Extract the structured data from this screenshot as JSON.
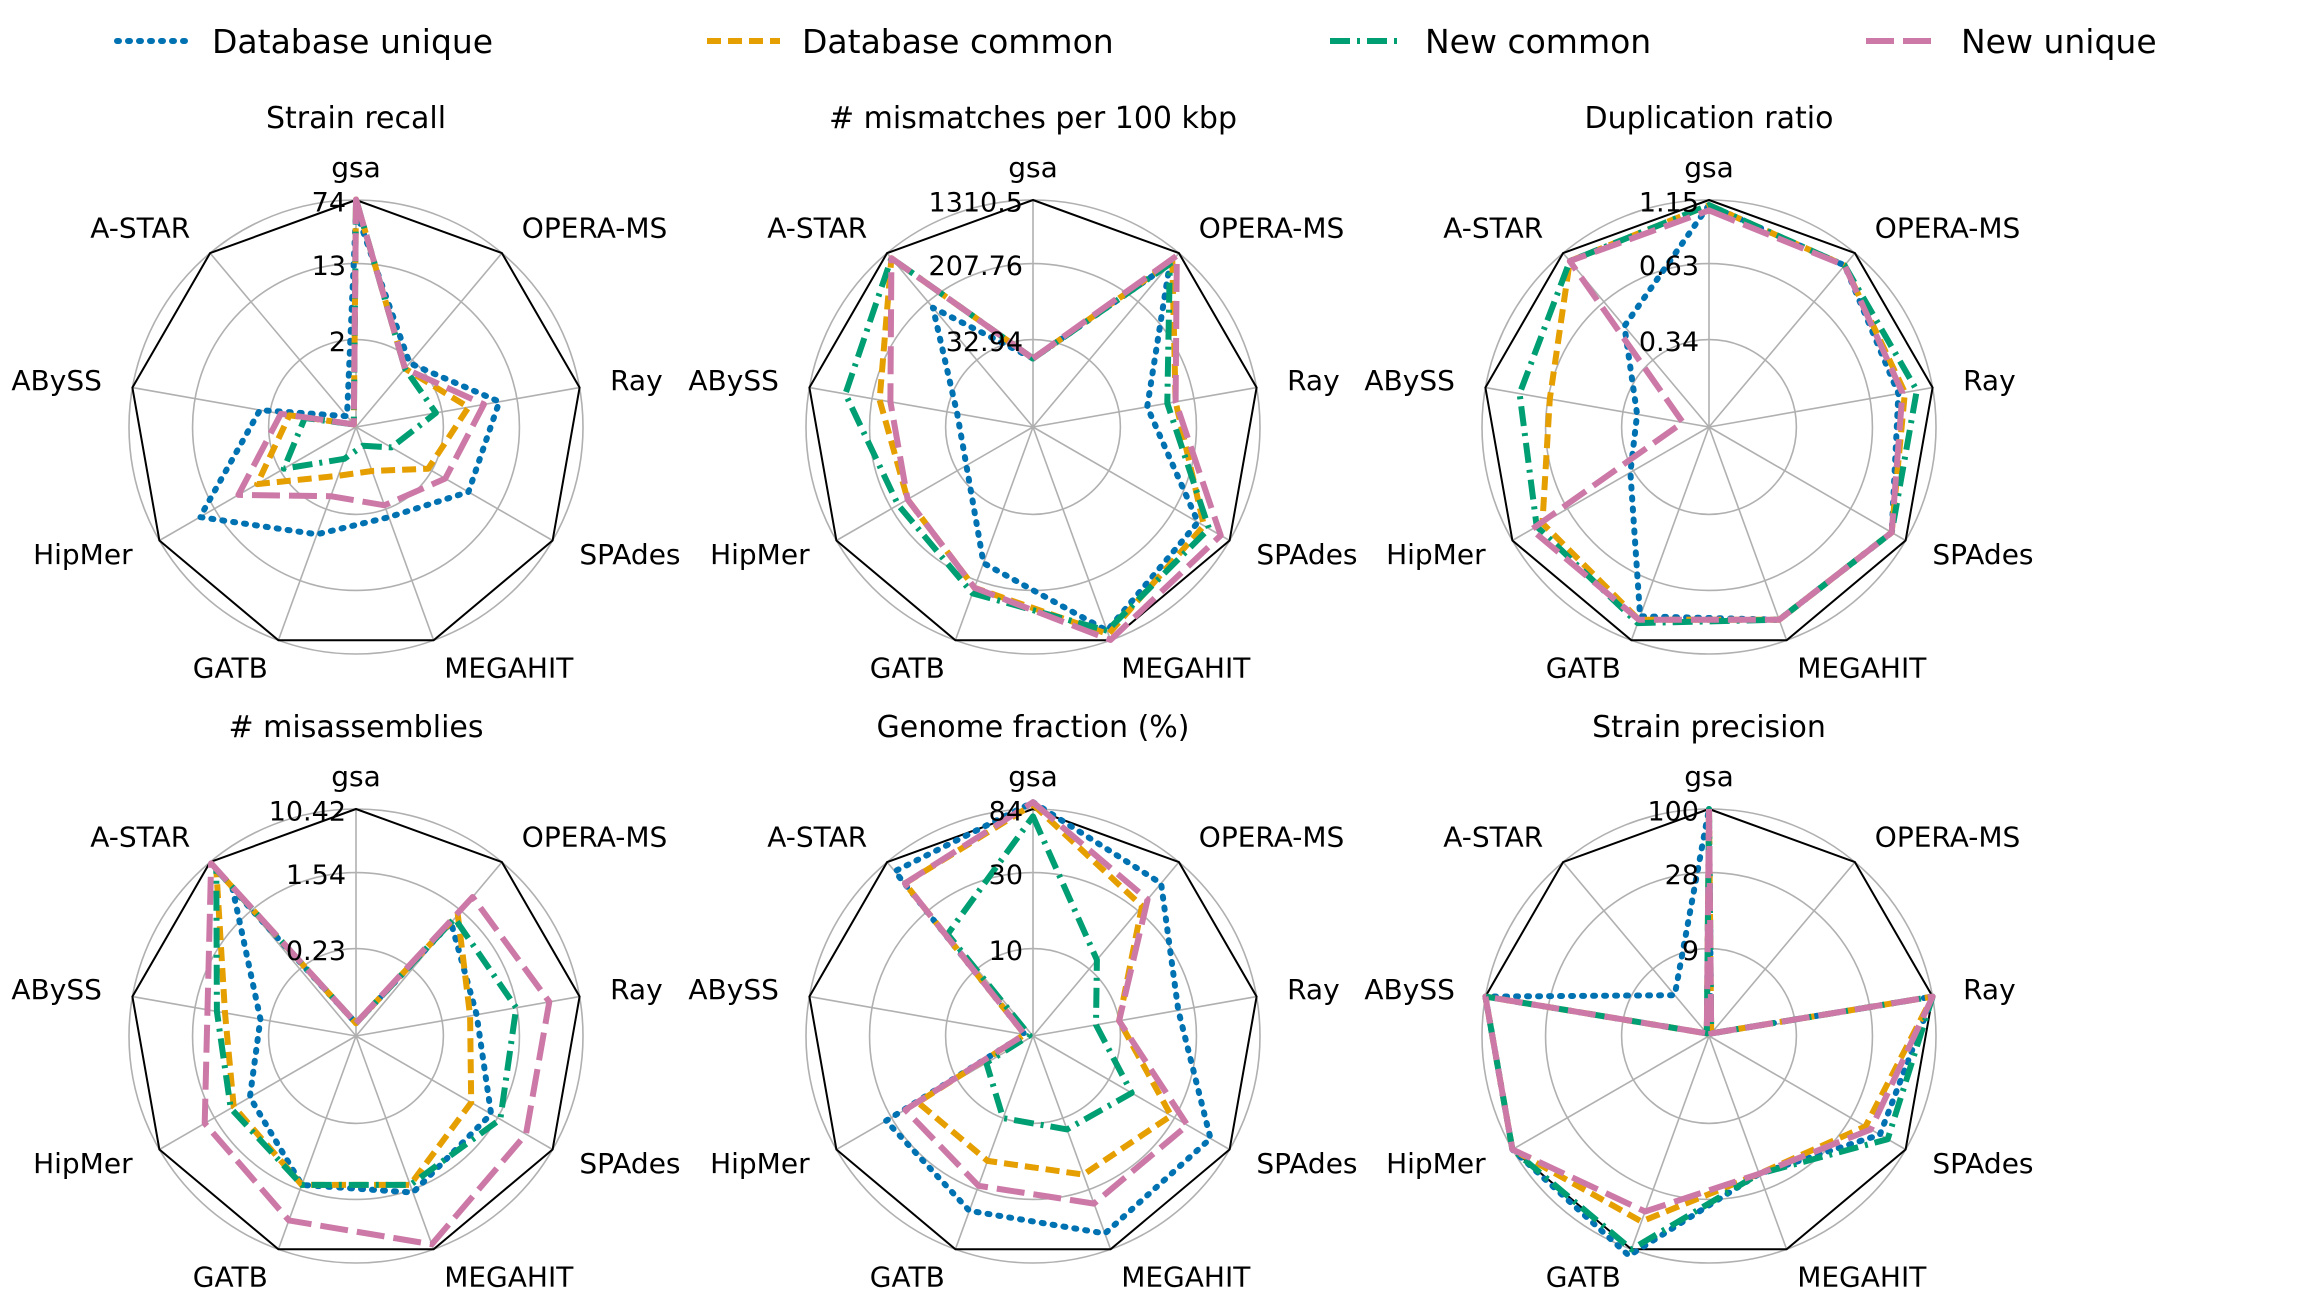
{
  "legend": [
    {
      "name": "Database unique",
      "color": "#0072B2",
      "dash": "dotted"
    },
    {
      "name": "Database common",
      "color": "#E69F00",
      "dash": "dashed"
    },
    {
      "name": "New common",
      "color": "#009E73",
      "dash": "dashdot"
    },
    {
      "name": "New unique",
      "color": "#CC79A7",
      "dash": "longdash"
    }
  ],
  "chart_data": [
    {
      "type": "radar",
      "title": "Strain recall",
      "axes": [
        "gsa",
        "OPERA-MS",
        "Ray",
        "SPAdes",
        "MEGAHIT",
        "GATB",
        "HipMer",
        "ABySS",
        "A-STAR"
      ],
      "scale": "log",
      "ticks": [
        "2",
        "13",
        "74"
      ],
      "series": [
        {
          "name": "Database unique",
          "values": [
            55,
            1.8,
            9,
            6,
            2.5,
            4,
            22,
            2.6,
            0.3
          ]
        },
        {
          "name": "Database common",
          "values": [
            75,
            1.5,
            4,
            1.8,
            0.7,
            0.8,
            4,
            1.2,
            0.2
          ]
        },
        {
          "name": "New common",
          "values": [
            75,
            1.5,
            1.7,
            0.6,
            0.35,
            0.5,
            1.8,
            0.8,
            0.2
          ]
        },
        {
          "name": "New unique",
          "values": [
            75,
            1.5,
            6,
            3,
            1.8,
            1.4,
            7,
            1.5,
            0.2
          ]
        }
      ]
    },
    {
      "type": "radar",
      "title": "# mismatches per 100 kbp",
      "axes": [
        "gsa",
        "OPERA-MS",
        "Ray",
        "SPAdes",
        "MEGAHIT",
        "GATB",
        "HipMer",
        "ABySS",
        "A-STAR"
      ],
      "scale": "log",
      "ticks": [
        "32.94",
        "207.76",
        "1310.5"
      ],
      "series": [
        {
          "name": "Database unique",
          "values": [
            20,
            900,
            70,
            500,
            1000,
            150,
            25,
            25,
            200
          ]
        },
        {
          "name": "Database common",
          "values": [
            20,
            1000,
            150,
            600,
            1100,
            300,
            150,
            200,
            1100
          ]
        },
        {
          "name": "New common",
          "values": [
            20,
            900,
            120,
            700,
            1000,
            350,
            200,
            500,
            1100
          ]
        },
        {
          "name": "New unique",
          "values": [
            20,
            1200,
            150,
            1000,
            1300,
            300,
            150,
            150,
            1100
          ]
        }
      ]
    },
    {
      "type": "radar",
      "title": "Duplication ratio",
      "axes": [
        "gsa",
        "OPERA-MS",
        "Ray",
        "SPAdes",
        "MEGAHIT",
        "GATB",
        "HipMer",
        "ABySS",
        "A-STAR"
      ],
      "scale": "log",
      "ticks": [
        "0.34",
        "0.63",
        "1.15"
      ],
      "series": [
        {
          "name": "Database unique",
          "values": [
            1.1,
            1.0,
            0.85,
            1.0,
            0.95,
            0.92,
            0.35,
            0.3,
            0.5
          ]
        },
        {
          "name": "Database common",
          "values": [
            1.1,
            1.0,
            0.9,
            1.0,
            0.95,
            0.95,
            0.85,
            0.65,
            1.05
          ]
        },
        {
          "name": "New common",
          "values": [
            1.1,
            1.0,
            1.0,
            1.0,
            0.95,
            0.98,
            0.9,
            0.85,
            1.05
          ]
        },
        {
          "name": "New unique",
          "values": [
            1.05,
            1.0,
            0.88,
            1.0,
            0.95,
            0.95,
            0.95,
            0.2,
            1.05
          ]
        }
      ]
    },
    {
      "type": "radar",
      "title": "# misassemblies",
      "axes": [
        "gsa",
        "OPERA-MS",
        "Ray",
        "SPAdes",
        "MEGAHIT",
        "GATB",
        "HipMer",
        "ABySS",
        "A-STAR"
      ],
      "scale": "log",
      "ticks": [
        "0.23",
        "1.54",
        "10.42"
      ],
      "series": [
        {
          "name": "Database unique",
          "values": [
            0.03,
            1.2,
            0.6,
            1.5,
            2.0,
            1.6,
            0.6,
            0.3,
            4
          ]
        },
        {
          "name": "Database common",
          "values": [
            0.03,
            1.6,
            0.5,
            0.8,
            1.6,
            1.6,
            1.0,
            0.8,
            8
          ]
        },
        {
          "name": "New common",
          "values": [
            0.03,
            1.4,
            1.8,
            2.0,
            1.6,
            1.6,
            1.1,
            1.0,
            8
          ]
        },
        {
          "name": "New unique",
          "values": [
            0.03,
            3.0,
            4.5,
            4.5,
            9.0,
            4.5,
            2.5,
            1.3,
            10
          ]
        }
      ]
    },
    {
      "type": "radar",
      "title": "Genome fraction (%)",
      "axes": [
        "gsa",
        "OPERA-MS",
        "Ray",
        "SPAdes",
        "MEGAHIT",
        "GATB",
        "HipMer",
        "ABySS",
        "A-STAR"
      ],
      "scale": "log",
      "ticks": [
        "10",
        "30",
        "84"
      ],
      "series": [
        {
          "name": "Database unique",
          "values": [
            100,
            55,
            25,
            60,
            65,
            45,
            35,
            3,
            70
          ]
        },
        {
          "name": "Database common",
          "values": [
            90,
            35,
            10,
            30,
            25,
            20,
            20,
            3,
            55
          ]
        },
        {
          "name": "New common",
          "values": [
            75,
            12,
            7,
            15,
            12,
            10,
            6,
            2,
            20
          ]
        },
        {
          "name": "New unique",
          "values": [
            100,
            40,
            10,
            40,
            40,
            30,
            25,
            3,
            55
          ]
        }
      ]
    },
    {
      "type": "radar",
      "title": "Strain precision",
      "axes": [
        "gsa",
        "OPERA-MS",
        "Ray",
        "SPAdes",
        "MEGAHIT",
        "GATB",
        "HipMer",
        "ABySS",
        "A-STAR"
      ],
      "scale": "log",
      "ticks": [
        "9",
        "28",
        "100"
      ],
      "series": [
        {
          "name": "Database unique",
          "values": [
            100,
            1.8,
            100,
            60,
            25,
            120,
            100,
            100,
            5
          ]
        },
        {
          "name": "Database common",
          "values": [
            100,
            1.8,
            100,
            45,
            25,
            60,
            100,
            100,
            1.5
          ]
        },
        {
          "name": "New common",
          "values": [
            100,
            1.8,
            100,
            70,
            25,
            100,
            100,
            100,
            1.5
          ]
        },
        {
          "name": "New unique",
          "values": [
            100,
            1.8,
            100,
            50,
            25,
            50,
            100,
            100,
            1.5
          ]
        }
      ]
    }
  ]
}
